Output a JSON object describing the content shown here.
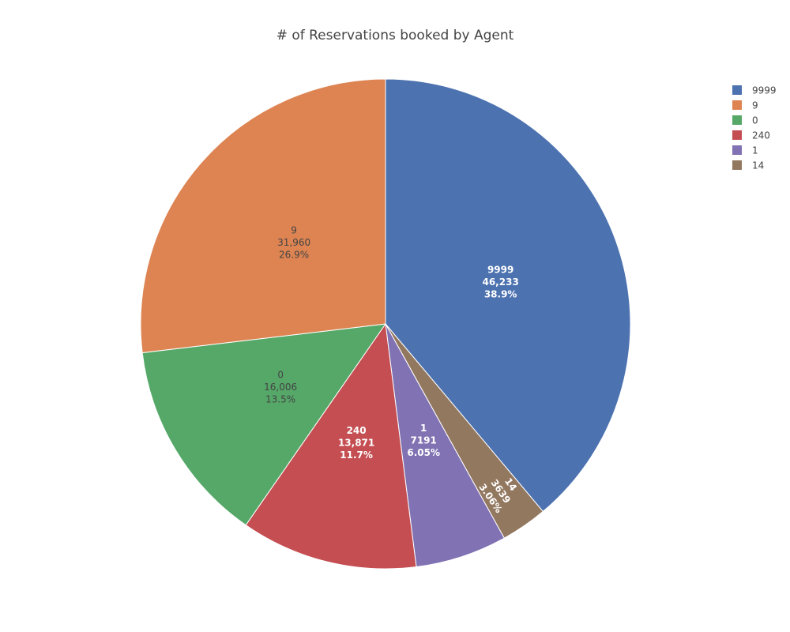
{
  "chart_data": {
    "type": "pie",
    "title": "# of Reservations booked by Agent",
    "slices": [
      {
        "label": "9999",
        "value": 46233,
        "value_text": "46,233",
        "percent_text": "38.9%",
        "color": "#4c72b0",
        "text_color": "#ffffff"
      },
      {
        "label": "14",
        "value": 3639,
        "value_text": "3639",
        "percent_text": "3.06%",
        "color": "#937860",
        "text_color": "#ffffff"
      },
      {
        "label": "1",
        "value": 7191,
        "value_text": "7191",
        "percent_text": "6.05%",
        "color": "#8172b3",
        "text_color": "#ffffff"
      },
      {
        "label": "240",
        "value": 13871,
        "value_text": "13,871",
        "percent_text": "11.7%",
        "color": "#c44e52",
        "text_color": "#ffffff"
      },
      {
        "label": "0",
        "value": 16006,
        "value_text": "16,006",
        "percent_text": "13.5%",
        "color": "#55a868",
        "text_color": "#444444"
      },
      {
        "label": "9",
        "value": 31960,
        "value_text": "31,960",
        "percent_text": "26.9%",
        "color": "#dd8452",
        "text_color": "#444444"
      }
    ],
    "legend": {
      "placement": "top-right",
      "order": [
        "9999",
        "9",
        "0",
        "240",
        "1",
        "14"
      ]
    },
    "direction": "clockwise",
    "start_angle": "top"
  }
}
